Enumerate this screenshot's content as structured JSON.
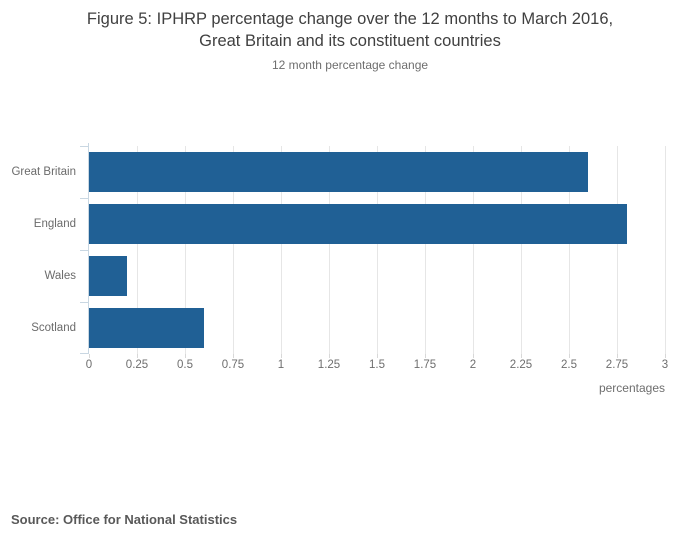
{
  "figure": {
    "title_line1": "Figure 5: IPHRP percentage change over the 12 months to March 2016,",
    "title_line2": "Great Britain and its constituent countries",
    "subtitle": "12 month percentage change",
    "source": "Source: Office for National Statistics"
  },
  "chart_data": {
    "type": "bar",
    "orientation": "horizontal",
    "title": "Figure 5: IPHRP percentage change over the 12 months to March 2016, Great Britain and its constituent countries",
    "subtitle": "12 month percentage change",
    "categories": [
      "Great Britain",
      "England",
      "Wales",
      "Scotland"
    ],
    "values": [
      2.6,
      2.8,
      0.2,
      0.6
    ],
    "xlabel": "percentages",
    "ylabel": "",
    "xlim": [
      0,
      3
    ],
    "xticks": [
      0,
      0.25,
      0.5,
      0.75,
      1,
      1.25,
      1.5,
      1.75,
      2,
      2.25,
      2.5,
      2.75,
      3
    ],
    "xtick_labels": [
      "0",
      "0.25",
      "0.5",
      "0.75",
      "1",
      "1.25",
      "1.5",
      "1.75",
      "2",
      "2.25",
      "2.5",
      "2.75",
      "3"
    ],
    "grid": true,
    "legend": "none",
    "bar_color": "#206095"
  },
  "colors": {
    "bar": "#206095",
    "gridline": "#e6e6e6",
    "axis_line": "#c9d7e2",
    "title_text": "#404040",
    "muted_text": "#6e6e6e",
    "source_text": "#595959"
  }
}
